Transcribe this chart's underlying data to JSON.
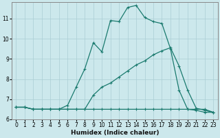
{
  "title": "",
  "xlabel": "Humidex (Indice chaleur)",
  "ylabel": "",
  "xlim": [
    -0.5,
    23.5
  ],
  "ylim": [
    6,
    11.8
  ],
  "yticks": [
    6,
    7,
    8,
    9,
    10,
    11
  ],
  "xticks": [
    0,
    1,
    2,
    3,
    4,
    5,
    6,
    7,
    8,
    9,
    10,
    11,
    12,
    13,
    14,
    15,
    16,
    17,
    18,
    19,
    20,
    21,
    22,
    23
  ],
  "bg_color": "#cce8ec",
  "grid_color": "#aacdd4",
  "line_color": "#1a7a6e",
  "line1_x": [
    0,
    1,
    2,
    3,
    4,
    5,
    6,
    7,
    8,
    9,
    10,
    11,
    12,
    13,
    14,
    15,
    16,
    17,
    18,
    19,
    20,
    21,
    22,
    23
  ],
  "line1_y": [
    6.6,
    6.6,
    6.5,
    6.5,
    6.5,
    6.5,
    6.5,
    6.5,
    6.5,
    6.5,
    6.5,
    6.5,
    6.5,
    6.5,
    6.5,
    6.5,
    6.5,
    6.5,
    6.5,
    6.5,
    6.5,
    6.5,
    6.5,
    6.35
  ],
  "line2_x": [
    0,
    1,
    2,
    3,
    4,
    5,
    6,
    7,
    8,
    9,
    10,
    11,
    12,
    13,
    14,
    15,
    16,
    17,
    18,
    19,
    20,
    21,
    22,
    23
  ],
  "line2_y": [
    6.6,
    6.6,
    6.5,
    6.5,
    6.5,
    6.5,
    6.5,
    6.5,
    6.5,
    7.2,
    7.6,
    7.8,
    8.1,
    8.4,
    8.7,
    8.9,
    9.2,
    9.4,
    9.55,
    8.65,
    7.45,
    6.55,
    6.45,
    6.35
  ],
  "line3_x": [
    0,
    1,
    2,
    3,
    4,
    5,
    6,
    7,
    8,
    9,
    10,
    11,
    12,
    13,
    14,
    15,
    16,
    17,
    18,
    19,
    20,
    21,
    22,
    23
  ],
  "line3_y": [
    6.6,
    6.6,
    6.5,
    6.5,
    6.5,
    6.5,
    6.7,
    7.6,
    8.5,
    9.8,
    9.35,
    10.9,
    10.85,
    11.55,
    11.65,
    11.05,
    10.85,
    10.75,
    9.5,
    7.45,
    6.5,
    6.45,
    6.35,
    6.35
  ],
  "marker": "+",
  "markersize": 3,
  "linewidth": 0.9,
  "tick_fontsize": 5.5,
  "xlabel_fontsize": 6.5
}
